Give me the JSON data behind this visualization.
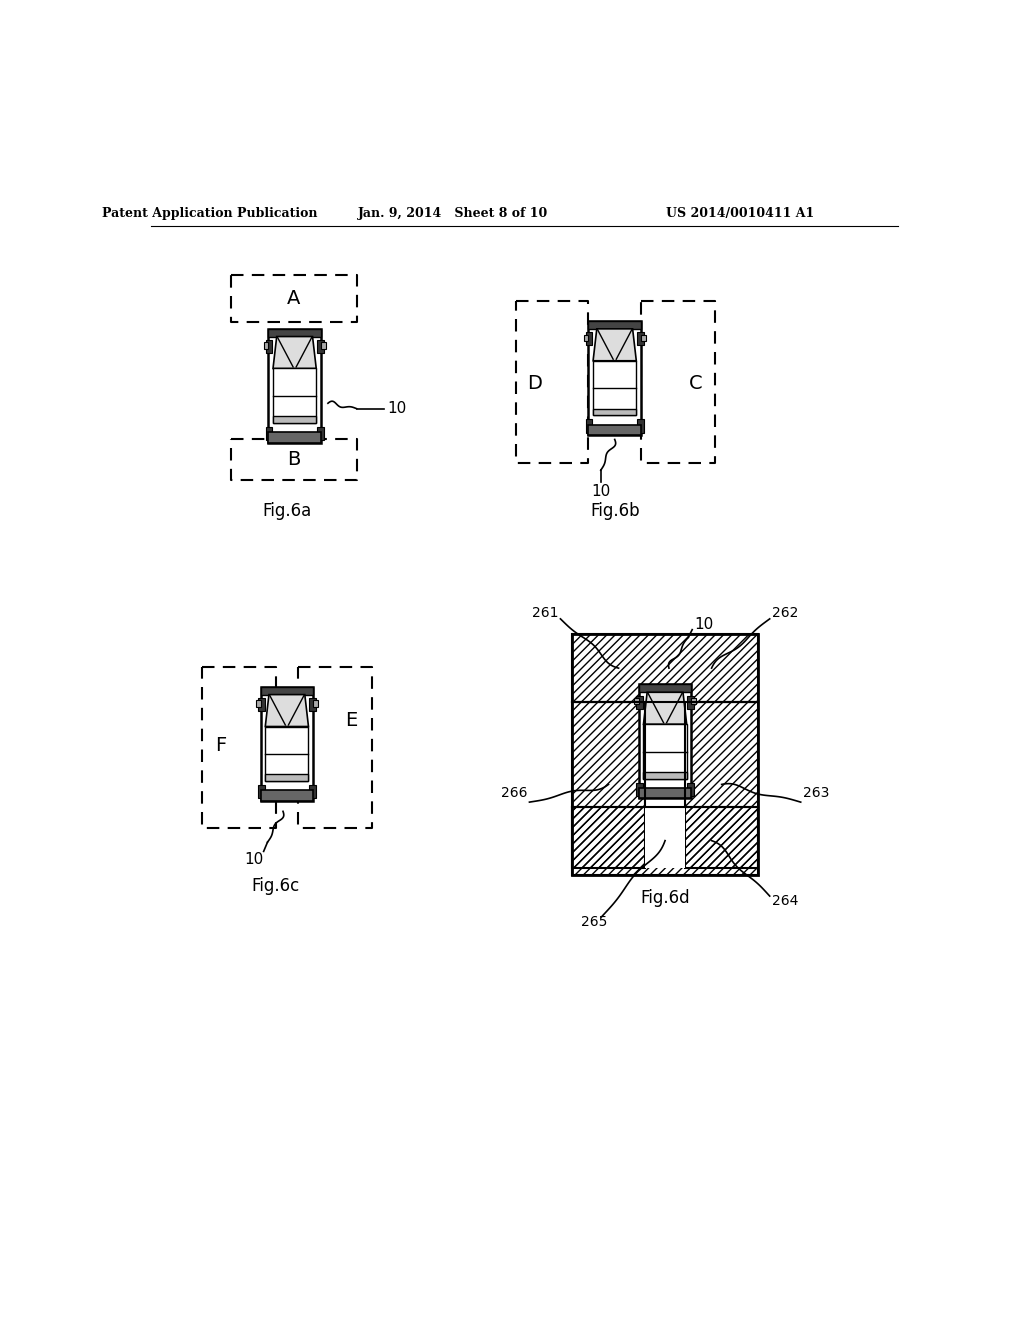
{
  "header_left": "Patent Application Publication",
  "header_mid": "Jan. 9, 2014   Sheet 8 of 10",
  "header_right": "US 2014/0010411 A1",
  "bg_color": "#ffffff",
  "text_color": "#000000",
  "fig6a_label": "Fig.6a",
  "fig6b_label": "Fig.6b",
  "fig6c_label": "Fig.6c",
  "fig6d_label": "Fig.6d",
  "label_A": "A",
  "label_B": "B",
  "label_C": "C",
  "label_D": "D",
  "label_E": "E",
  "label_F": "F",
  "label_10": "10",
  "label_261": "261",
  "label_262": "262",
  "label_263": "263",
  "label_264": "264",
  "label_265": "265",
  "label_266": "266"
}
